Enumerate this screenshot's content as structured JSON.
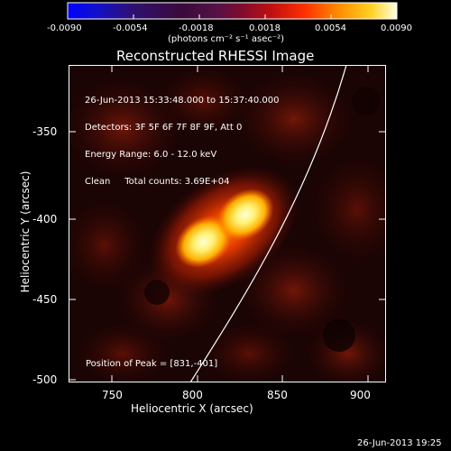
{
  "colorbar": {
    "tick_labels": [
      "-0.0090",
      "-0.0054",
      "-0.0018",
      "0.0018",
      "0.0054",
      "0.0090"
    ],
    "unit_label": "(photons cm⁻² s⁻¹ asec⁻²)"
  },
  "plot": {
    "title": "Reconstructed RHESSI Image",
    "info": {
      "time_range": "26-Jun-2013 15:33:48.000 to 15:37:40.000",
      "detectors": "Detectors: 3F 5F 6F 7F 8F 9F, Att 0",
      "energy": "Energy Range: 6.0 - 12.0 keV",
      "clean": "Clean     Total counts: 3.69E+04"
    },
    "peak_label": "Position of Peak = [831,-401]",
    "x_axis": {
      "title": "Heliocentric X (arcsec)",
      "ticks": [
        "750",
        "800",
        "850",
        "900"
      ]
    },
    "y_axis": {
      "title": "Heliocentric Y (arcsec)",
      "ticks": [
        "-350",
        "-400",
        "-450",
        "-500"
      ]
    }
  },
  "footer": {
    "timestamp": "26-Jun-2013 19:25"
  },
  "colors": {
    "background": "#000000",
    "limb": "#ffffff"
  }
}
